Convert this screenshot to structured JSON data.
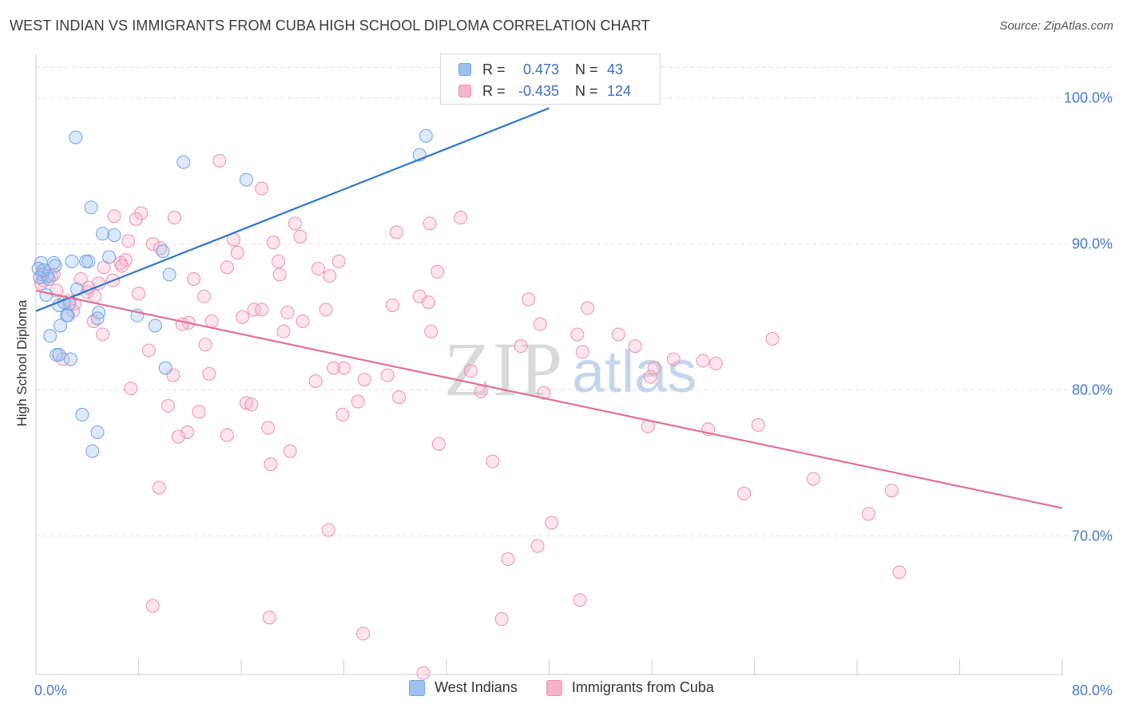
{
  "title": "WEST INDIAN VS IMMIGRANTS FROM CUBA HIGH SCHOOL DIPLOMA CORRELATION CHART",
  "source": "Source: ZipAtlas.com",
  "watermark": {
    "part1": "ZIP",
    "part2": "atlas"
  },
  "legend": {
    "rows": [
      {
        "r_label": "R =",
        "r_value": "0.473",
        "n_label": "N =",
        "n_value": "43",
        "color": "#9dc1ee"
      },
      {
        "r_label": "R =",
        "r_value": "-0.435",
        "n_label": "N =",
        "n_value": "124",
        "color": "#f5b4c8"
      }
    ]
  },
  "bottom_legend": [
    {
      "label": "West Indians",
      "color": "#9dc1ee"
    },
    {
      "label": "Immigrants from Cuba",
      "color": "#f5b4c8"
    }
  ],
  "chart_data": {
    "type": "scatter",
    "title": "WEST INDIAN VS IMMIGRANTS FROM CUBA HIGH SCHOOL DIPLOMA CORRELATION CHART",
    "xlabel": "",
    "ylabel": "High School Diploma",
    "xlim": [
      0,
      80
    ],
    "ylim": [
      60.5,
      102.5
    ],
    "x_tick_labels": [
      "0.0%",
      "80.0%"
    ],
    "y_ticks": [
      70,
      80,
      90,
      100
    ],
    "y_tick_labels": [
      "70.0%",
      "80.0%",
      "90.0%",
      "100.0%"
    ],
    "grid": true,
    "colors": {
      "west_indians": "#6fa3e8",
      "cuba": "#ee8fb0",
      "west_line": "#2f74d0",
      "cuba_line": "#e0709a",
      "grid": "#e3e3e3"
    },
    "series": [
      {
        "name": "West Indians",
        "points": [
          [
            3.1,
            97.3
          ],
          [
            30.4,
            97.4
          ],
          [
            29.9,
            96.1
          ],
          [
            11.5,
            95.6
          ],
          [
            16.4,
            94.4
          ],
          [
            4.3,
            92.5
          ],
          [
            5.2,
            90.7
          ],
          [
            6.1,
            90.6
          ],
          [
            9.9,
            89.5
          ],
          [
            0.4,
            88.7
          ],
          [
            1.4,
            88.7
          ],
          [
            2.8,
            88.8
          ],
          [
            4.1,
            88.8
          ],
          [
            5.7,
            89.1
          ],
          [
            0.2,
            88.3
          ],
          [
            1.5,
            88.5
          ],
          [
            0.5,
            87.9
          ],
          [
            0.9,
            87.8
          ],
          [
            0.3,
            87.7
          ],
          [
            1.0,
            87.6
          ],
          [
            10.4,
            87.9
          ],
          [
            3.2,
            86.9
          ],
          [
            0.8,
            86.5
          ],
          [
            2.6,
            85.9
          ],
          [
            1.8,
            85.8
          ],
          [
            4.9,
            85.3
          ],
          [
            2.4,
            85.1
          ],
          [
            4.8,
            84.9
          ],
          [
            7.9,
            85.1
          ],
          [
            1.9,
            84.4
          ],
          [
            9.3,
            84.4
          ],
          [
            1.1,
            83.7
          ],
          [
            1.6,
            82.4
          ],
          [
            1.8,
            82.4
          ],
          [
            2.7,
            82.1
          ],
          [
            10.1,
            81.5
          ],
          [
            3.6,
            78.3
          ],
          [
            4.8,
            77.1
          ],
          [
            4.4,
            75.8
          ],
          [
            2.5,
            85.1
          ],
          [
            3.9,
            88.8
          ],
          [
            0.6,
            88.2
          ],
          [
            2.2,
            86.0
          ]
        ]
      },
      {
        "name": "Immigrants from Cuba",
        "points": [
          [
            14.3,
            95.7
          ],
          [
            17.6,
            93.8
          ],
          [
            8.2,
            92.1
          ],
          [
            6.1,
            91.9
          ],
          [
            7.8,
            91.7
          ],
          [
            10.8,
            91.8
          ],
          [
            33.1,
            91.8
          ],
          [
            30.7,
            91.4
          ],
          [
            20.2,
            91.4
          ],
          [
            28.1,
            90.8
          ],
          [
            20.6,
            90.5
          ],
          [
            15.4,
            90.3
          ],
          [
            7.2,
            90.2
          ],
          [
            18.5,
            90.1
          ],
          [
            9.1,
            90.0
          ],
          [
            9.7,
            89.7
          ],
          [
            15.7,
            89.4
          ],
          [
            7.0,
            88.9
          ],
          [
            6.6,
            88.7
          ],
          [
            18.9,
            88.8
          ],
          [
            23.6,
            88.8
          ],
          [
            14.9,
            88.4
          ],
          [
            5.3,
            88.4
          ],
          [
            22.0,
            88.3
          ],
          [
            31.3,
            88.1
          ],
          [
            19.0,
            87.9
          ],
          [
            22.9,
            87.8
          ],
          [
            0.5,
            88.1
          ],
          [
            1.2,
            87.8
          ],
          [
            3.5,
            87.6
          ],
          [
            6.0,
            87.5
          ],
          [
            12.3,
            87.6
          ],
          [
            4.9,
            87.3
          ],
          [
            0.4,
            87.3
          ],
          [
            1.6,
            86.8
          ],
          [
            4.0,
            86.7
          ],
          [
            8.0,
            86.6
          ],
          [
            4.6,
            86.4
          ],
          [
            13.1,
            86.4
          ],
          [
            29.9,
            86.4
          ],
          [
            38.4,
            86.2
          ],
          [
            2.6,
            86.1
          ],
          [
            30.6,
            86.0
          ],
          [
            27.8,
            85.8
          ],
          [
            43.0,
            85.6
          ],
          [
            2.9,
            85.4
          ],
          [
            17.0,
            85.5
          ],
          [
            17.6,
            85.5
          ],
          [
            22.6,
            85.5
          ],
          [
            19.6,
            85.3
          ],
          [
            16.1,
            85.0
          ],
          [
            4.5,
            84.7
          ],
          [
            11.9,
            84.6
          ],
          [
            13.7,
            84.7
          ],
          [
            11.4,
            84.5
          ],
          [
            20.8,
            84.7
          ],
          [
            39.3,
            84.5
          ],
          [
            30.8,
            84.0
          ],
          [
            19.3,
            84.0
          ],
          [
            5.2,
            83.8
          ],
          [
            45.4,
            83.8
          ],
          [
            42.2,
            83.8
          ],
          [
            57.4,
            83.5
          ],
          [
            13.2,
            83.1
          ],
          [
            37.8,
            83.0
          ],
          [
            46.7,
            83.0
          ],
          [
            8.8,
            82.7
          ],
          [
            42.6,
            82.6
          ],
          [
            49.7,
            82.1
          ],
          [
            52.0,
            82.0
          ],
          [
            53.0,
            81.8
          ],
          [
            24.0,
            81.5
          ],
          [
            48.2,
            81.5
          ],
          [
            23.2,
            81.5
          ],
          [
            33.9,
            81.3
          ],
          [
            13.5,
            81.1
          ],
          [
            10.7,
            81.0
          ],
          [
            27.4,
            81.0
          ],
          [
            25.6,
            80.7
          ],
          [
            47.9,
            80.9
          ],
          [
            21.8,
            80.6
          ],
          [
            7.4,
            80.1
          ],
          [
            34.7,
            79.9
          ],
          [
            39.6,
            79.8
          ],
          [
            28.3,
            79.5
          ],
          [
            25.1,
            79.2
          ],
          [
            16.4,
            79.1
          ],
          [
            16.8,
            79.0
          ],
          [
            10.3,
            78.9
          ],
          [
            12.7,
            78.5
          ],
          [
            23.9,
            78.3
          ],
          [
            47.7,
            77.5
          ],
          [
            52.4,
            77.3
          ],
          [
            18.1,
            77.4
          ],
          [
            56.3,
            77.6
          ],
          [
            11.8,
            77.1
          ],
          [
            14.9,
            76.9
          ],
          [
            11.1,
            76.8
          ],
          [
            31.4,
            76.3
          ],
          [
            19.8,
            75.8
          ],
          [
            35.6,
            75.1
          ],
          [
            18.3,
            74.9
          ],
          [
            60.6,
            73.9
          ],
          [
            66.7,
            73.1
          ],
          [
            9.6,
            73.3
          ],
          [
            55.2,
            72.9
          ],
          [
            64.9,
            71.5
          ],
          [
            40.2,
            70.9
          ],
          [
            22.8,
            70.4
          ],
          [
            39.1,
            69.3
          ],
          [
            36.8,
            68.4
          ],
          [
            67.3,
            67.5
          ],
          [
            42.4,
            65.6
          ],
          [
            9.1,
            65.2
          ],
          [
            18.2,
            64.4
          ],
          [
            36.3,
            64.3
          ],
          [
            25.5,
            63.3
          ],
          [
            30.2,
            60.6
          ],
          [
            2.1,
            82.1
          ],
          [
            6.7,
            88.5
          ],
          [
            3.0,
            85.9
          ],
          [
            0.6,
            87.5
          ],
          [
            1.4,
            87.9
          ],
          [
            4.1,
            87.0
          ]
        ]
      }
    ],
    "trend_lines": [
      {
        "series": "West Indians",
        "x": [
          0,
          40
        ],
        "y": [
          85.4,
          99.3
        ]
      },
      {
        "series": "Immigrants from Cuba",
        "x": [
          0,
          80
        ],
        "y": [
          86.8,
          71.9
        ]
      }
    ]
  }
}
